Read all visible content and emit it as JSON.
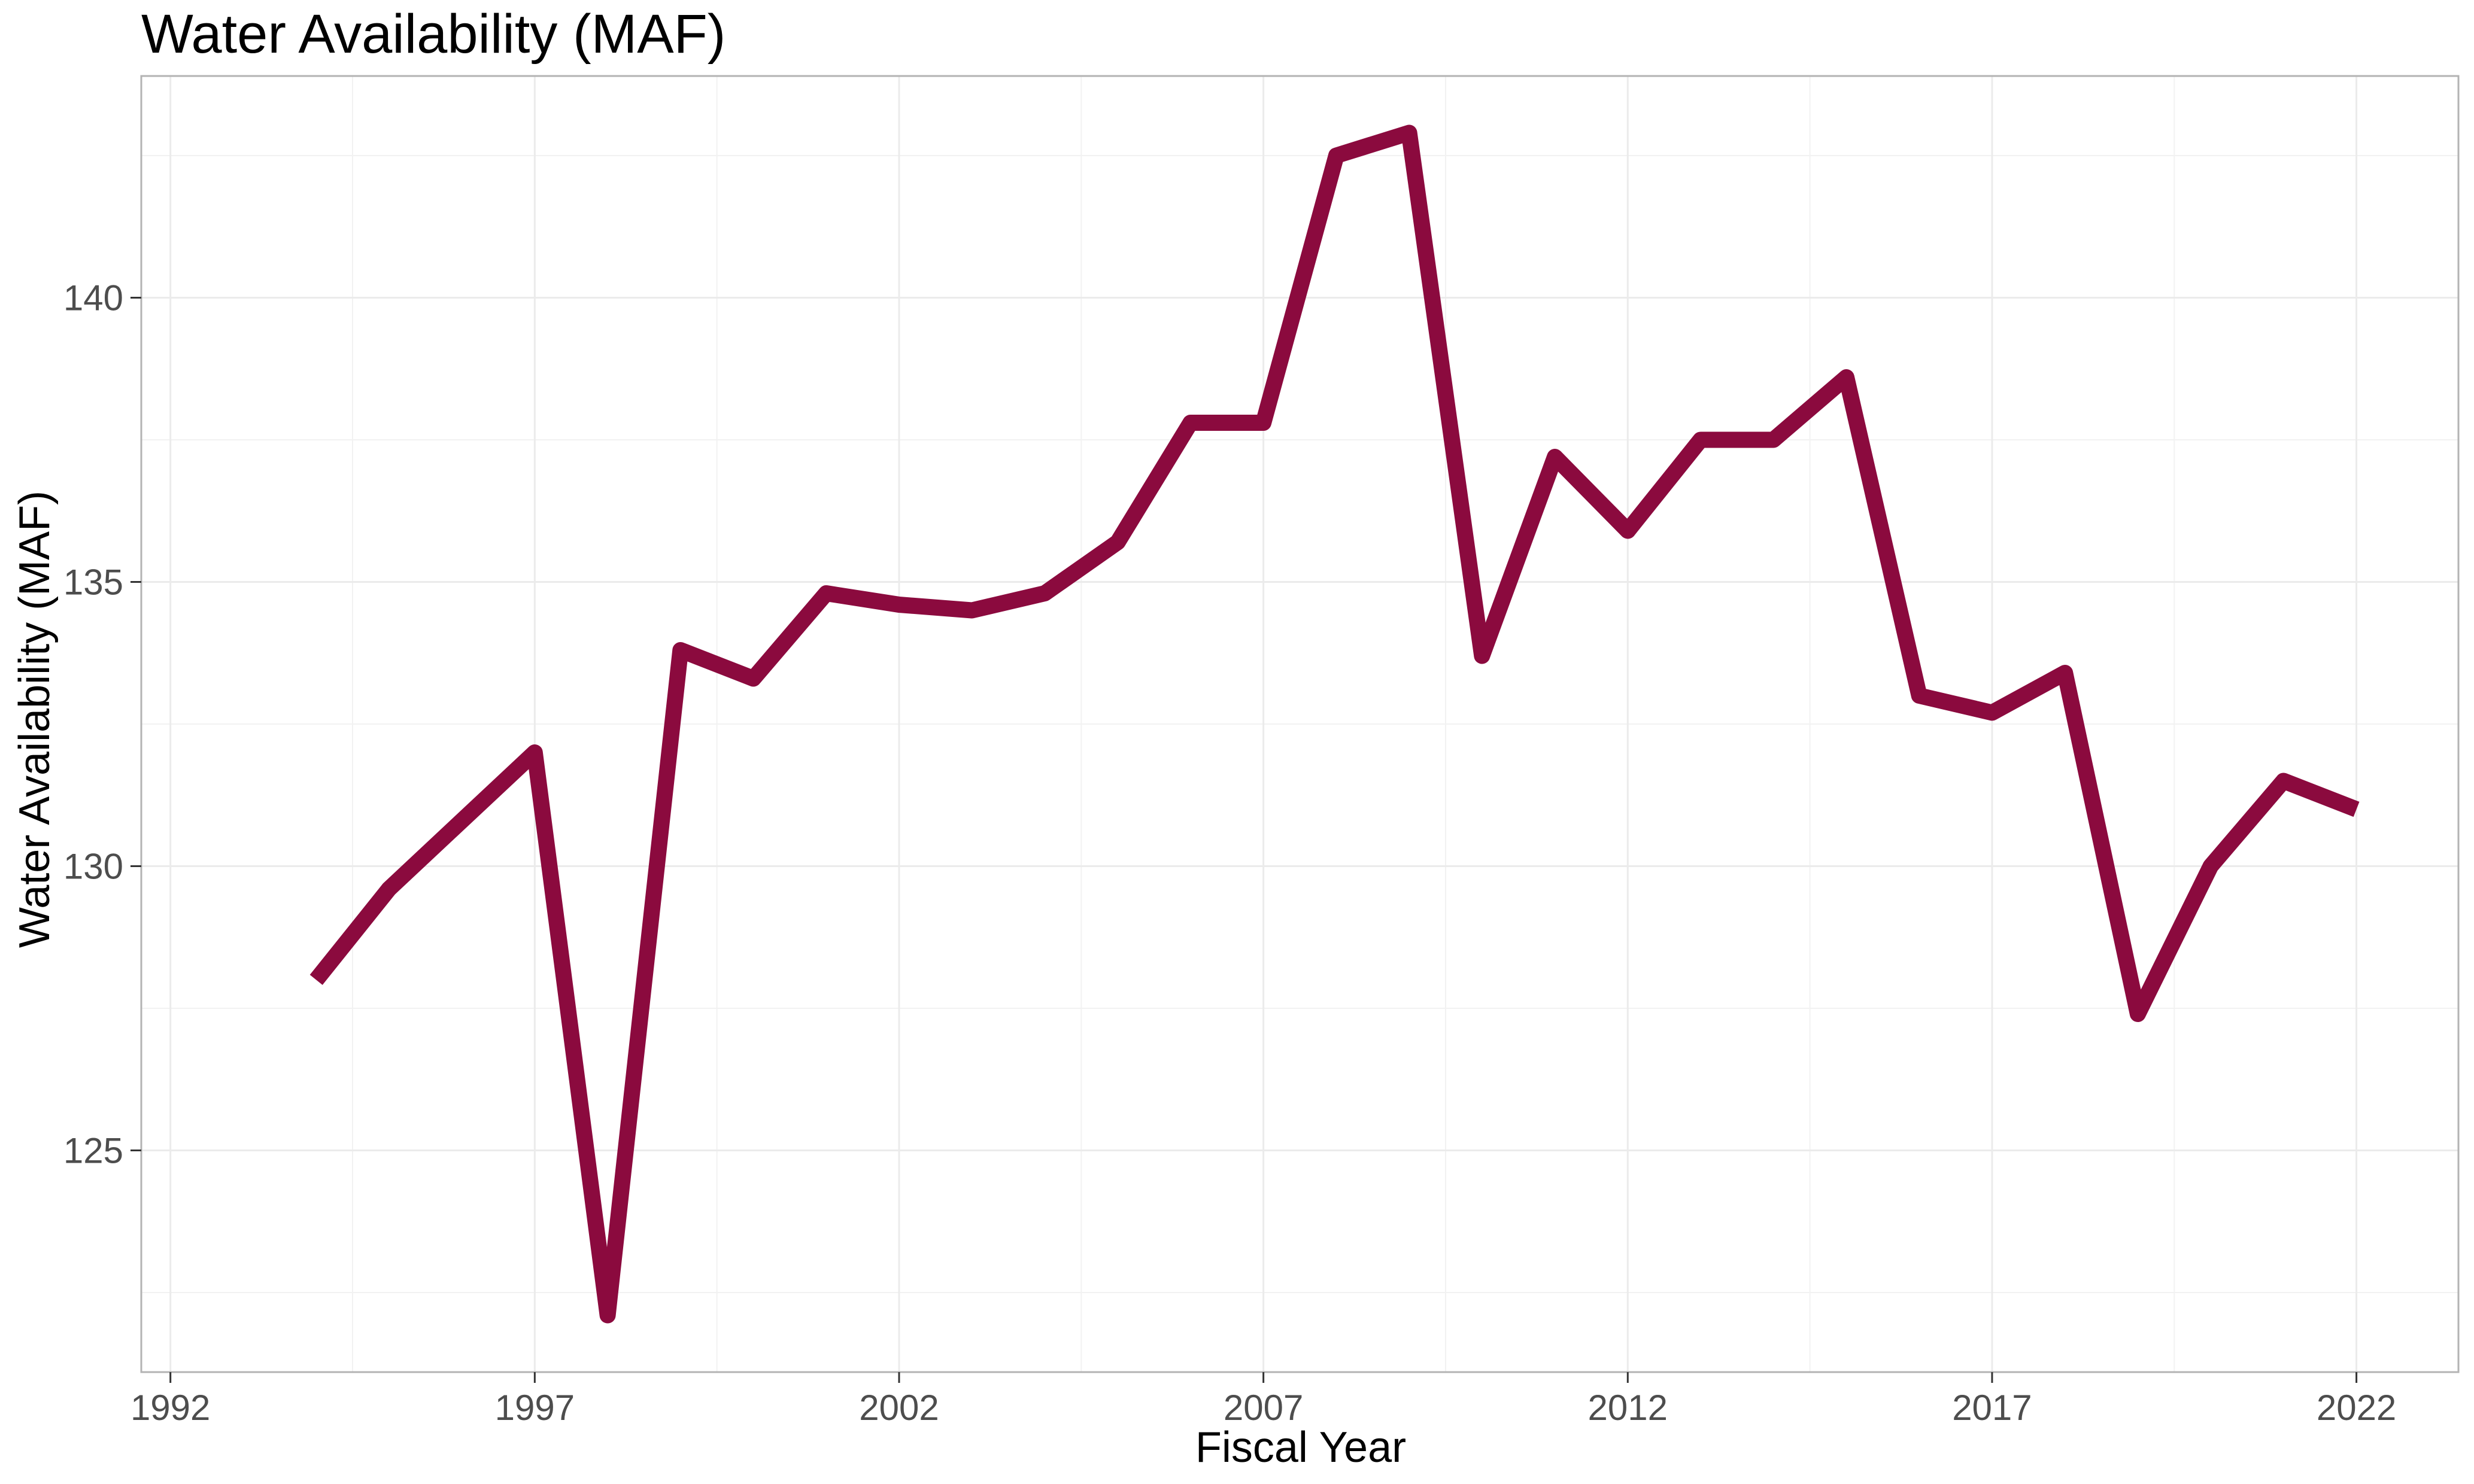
{
  "chart_data": {
    "type": "line",
    "title": "Water Availability (MAF)",
    "xlabel": "Fiscal Year",
    "ylabel": "Water Availability (MAF)",
    "xlim": [
      1991.6,
      2023.4
    ],
    "ylim": [
      121.1,
      143.9
    ],
    "x_ticks": [
      1992,
      1997,
      2002,
      2007,
      2012,
      2017,
      2022
    ],
    "x_minor_ticks": [
      1994.5,
      1999.5,
      2004.5,
      2009.5,
      2014.5,
      2019.5
    ],
    "y_ticks": [
      125,
      130,
      135,
      140
    ],
    "y_minor_ticks": [
      122.5,
      127.5,
      132.5,
      137.5,
      142.5
    ],
    "grid": true,
    "legend": "none",
    "series": [
      {
        "color": "#8b0a3e",
        "x": [
          1994,
          1995,
          1996,
          1997,
          1998,
          1999,
          2000,
          2001,
          2002,
          2003,
          2004,
          2005,
          2006,
          2007,
          2008,
          2009,
          2010,
          2011,
          2012,
          2013,
          2014,
          2015,
          2016,
          2017,
          2018,
          2019,
          2020,
          2021,
          2022
        ],
        "y": [
          128.0,
          129.6,
          130.8,
          132.0,
          122.1,
          133.8,
          133.3,
          134.8,
          134.6,
          134.5,
          134.8,
          135.7,
          137.8,
          137.8,
          142.5,
          142.9,
          133.7,
          137.2,
          135.9,
          137.5,
          137.5,
          138.6,
          133.0,
          132.7,
          133.4,
          127.4,
          130.0,
          131.5,
          131.0
        ]
      }
    ]
  }
}
